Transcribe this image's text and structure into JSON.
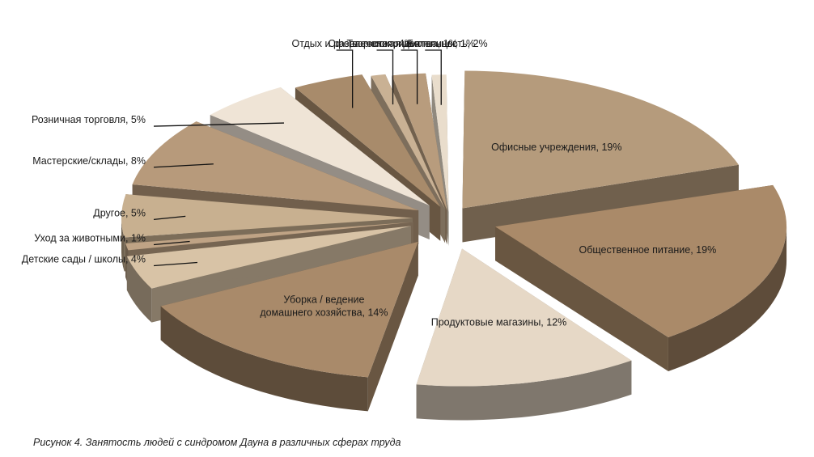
{
  "caption": "Рисунок 4. Занятость людей с синдромом Дауна в различных сферах труда",
  "chart_data": {
    "type": "pie",
    "style": "3d-exploded",
    "unit": "%",
    "slices": [
      {
        "label": "Офисные учреждения, 19%",
        "value": 19,
        "color": "#b59b7c"
      },
      {
        "label": "Общественное питание, 19%",
        "value": 19,
        "color": "#aa8a69"
      },
      {
        "label": "Продуктовые магазины, 12%",
        "value": 12,
        "color": "#e6d8c6"
      },
      {
        "label": "Уборка / ведение домашнего хозяйства, 14%",
        "value": 14,
        "color": "#a98a6a"
      },
      {
        "label": "Детские сады / школы, 4%",
        "value": 4,
        "color": "#d8c3a6"
      },
      {
        "label": "Уход за животными, 1%",
        "value": 1,
        "color": "#bfa385"
      },
      {
        "label": "Другое, 5%",
        "value": 5,
        "color": "#c8b090"
      },
      {
        "label": "Мастерские/склады, 8%",
        "value": 8,
        "color": "#b79a7b"
      },
      {
        "label": "Розничная торговля, 5%",
        "value": 5,
        "color": "#efe4d6"
      },
      {
        "label": "Отдых и развлечения, 4%",
        "value": 4,
        "color": "#a88b6b"
      },
      {
        "label": "Сфера гостеприимства, 1%",
        "value": 1,
        "color": "#c9b194"
      },
      {
        "label": "Творческая деятельность, 2%",
        "value": 2,
        "color": "#b89c7d"
      },
      {
        "label": "Больницы, 1%",
        "value": 1,
        "color": "#e9ddcc"
      }
    ]
  }
}
